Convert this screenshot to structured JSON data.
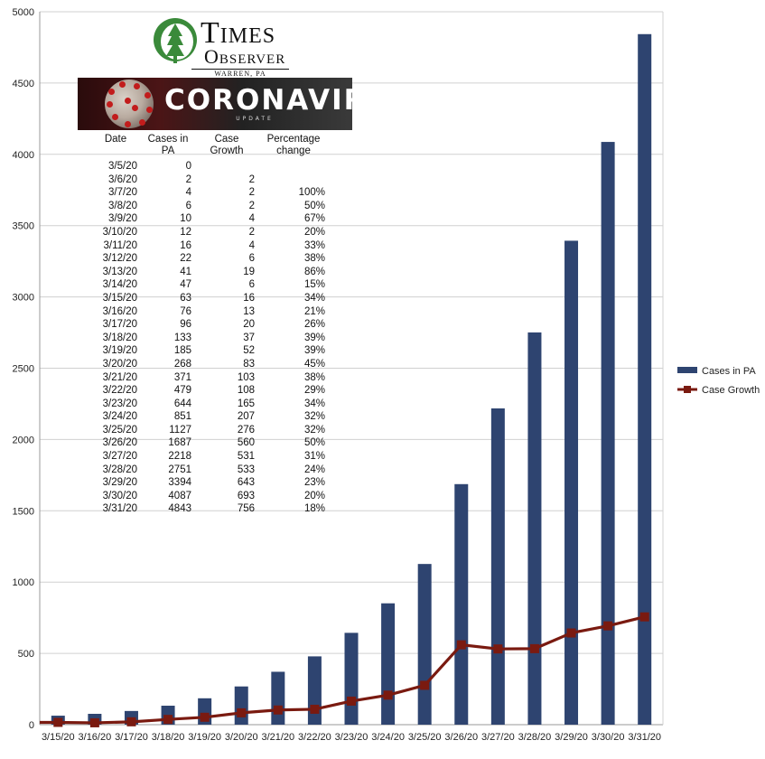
{
  "logo": {
    "word1": "Times",
    "word2": "Observer",
    "location": "WARREN, PA"
  },
  "banner": {
    "title": "CORONAVIRUS",
    "subtitle": "UPDATE"
  },
  "table": {
    "headers": [
      [
        "Date"
      ],
      [
        "Cases in",
        "PA"
      ],
      [
        "Case",
        "Growth"
      ],
      [
        "Percentage",
        "change"
      ]
    ],
    "rows": [
      [
        "3/5/20",
        "0",
        "",
        ""
      ],
      [
        "3/6/20",
        "2",
        "2",
        ""
      ],
      [
        "3/7/20",
        "4",
        "2",
        "100%"
      ],
      [
        "3/8/20",
        "6",
        "2",
        "50%"
      ],
      [
        "3/9/20",
        "10",
        "4",
        "67%"
      ],
      [
        "3/10/20",
        "12",
        "2",
        "20%"
      ],
      [
        "3/11/20",
        "16",
        "4",
        "33%"
      ],
      [
        "3/12/20",
        "22",
        "6",
        "38%"
      ],
      [
        "3/13/20",
        "41",
        "19",
        "86%"
      ],
      [
        "3/14/20",
        "47",
        "6",
        "15%"
      ],
      [
        "3/15/20",
        "63",
        "16",
        "34%"
      ],
      [
        "3/16/20",
        "76",
        "13",
        "21%"
      ],
      [
        "3/17/20",
        "96",
        "20",
        "26%"
      ],
      [
        "3/18/20",
        "133",
        "37",
        "39%"
      ],
      [
        "3/19/20",
        "185",
        "52",
        "39%"
      ],
      [
        "3/20/20",
        "268",
        "83",
        "45%"
      ],
      [
        "3/21/20",
        "371",
        "103",
        "38%"
      ],
      [
        "3/22/20",
        "479",
        "108",
        "29%"
      ],
      [
        "3/23/20",
        "644",
        "165",
        "34%"
      ],
      [
        "3/24/20",
        "851",
        "207",
        "32%"
      ],
      [
        "3/25/20",
        "1127",
        "276",
        "32%"
      ],
      [
        "3/26/20",
        "1687",
        "560",
        "50%"
      ],
      [
        "3/27/20",
        "2218",
        "531",
        "31%"
      ],
      [
        "3/28/20",
        "2751",
        "533",
        "24%"
      ],
      [
        "3/29/20",
        "3394",
        "643",
        "23%"
      ],
      [
        "3/30/20",
        "4087",
        "693",
        "20%"
      ],
      [
        "3/31/20",
        "4843",
        "756",
        "18%"
      ]
    ]
  },
  "chart_data": {
    "type": "bar",
    "categories": [
      "3/15/20",
      "3/16/20",
      "3/17/20",
      "3/18/20",
      "3/19/20",
      "3/20/20",
      "3/21/20",
      "3/22/20",
      "3/23/20",
      "3/24/20",
      "3/25/20",
      "3/26/20",
      "3/27/20",
      "3/28/20",
      "3/29/20",
      "3/30/20",
      "3/31/20"
    ],
    "series": [
      {
        "name": "Cases in PA",
        "kind": "bar",
        "color": "#2e4470",
        "values": [
          63,
          76,
          96,
          133,
          185,
          268,
          371,
          479,
          644,
          851,
          1127,
          1687,
          2218,
          2751,
          3394,
          4087,
          4843
        ]
      },
      {
        "name": "Case Growth",
        "kind": "line",
        "marker": "square",
        "color": "#7a1a10",
        "values": [
          16,
          13,
          20,
          37,
          52,
          83,
          103,
          108,
          165,
          207,
          276,
          560,
          531,
          533,
          643,
          693,
          756
        ]
      }
    ],
    "ylim": [
      0,
      5000
    ],
    "yticks": [
      0,
      500,
      1000,
      1500,
      2000,
      2500,
      3000,
      3500,
      4000,
      4500,
      5000
    ],
    "grid": true,
    "legend": "right",
    "gridColor": "#d0d0d0",
    "axisColor": "#999999"
  }
}
